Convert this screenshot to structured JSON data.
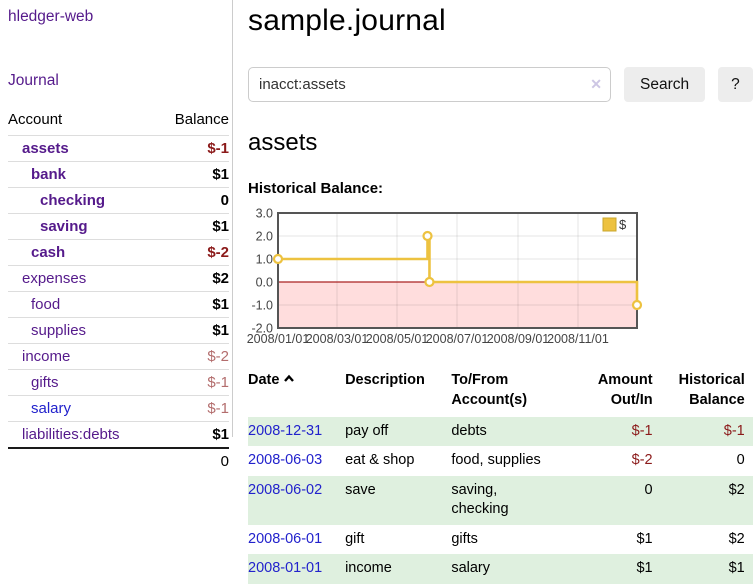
{
  "colors": {
    "link_purple": "#551a8b",
    "link_blue": "#2222cc",
    "negative_dark_red": "#8b1a1a",
    "negative_soft_red": "#b36d6d",
    "row_green": "#dff0df",
    "button_gray": "#ededed",
    "chart_line_gold": "#edc240",
    "chart_negative_fill": "#ffdddd",
    "chart_zero_line": "#aa2222"
  },
  "brand": {
    "title": "hledger-web"
  },
  "sidebar": {
    "journal_link": "Journal",
    "accounts_table": {
      "headers": {
        "account": "Account",
        "balance": "Balance"
      },
      "rows": [
        {
          "name": "assets",
          "balance": "$-1"
        },
        {
          "name": "bank",
          "balance": "$1"
        },
        {
          "name": "checking",
          "balance": "0"
        },
        {
          "name": "saving",
          "balance": "$1"
        },
        {
          "name": "cash",
          "balance": "$-2"
        },
        {
          "name": "expenses",
          "balance": "$2"
        },
        {
          "name": "food",
          "balance": "$1"
        },
        {
          "name": "supplies",
          "balance": "$1"
        },
        {
          "name": "income",
          "balance": "$-2"
        },
        {
          "name": "gifts",
          "balance": "$-1"
        },
        {
          "name": "salary",
          "balance": "$-1"
        },
        {
          "name": "liabilities:debts",
          "balance": "$1"
        }
      ],
      "total": "0"
    }
  },
  "main": {
    "title": "sample.journal",
    "search": {
      "value": "inacct:assets",
      "clear_icon": "✕",
      "search_button": "Search",
      "help_button": "?"
    },
    "account_heading": "assets",
    "chart_label": "Historical Balance:",
    "register": {
      "headers": {
        "date": "Date",
        "description": "Description",
        "accounts": "To/From Account(s)",
        "amount": "Amount Out/In",
        "balance": "Historical Balance"
      },
      "rows": [
        {
          "date": "2008-12-31",
          "description": "pay off",
          "accounts": "debts",
          "amount": "$-1",
          "balance": "$-1"
        },
        {
          "date": "2008-06-03",
          "description": "eat & shop",
          "accounts": "food, supplies",
          "amount": "$-2",
          "balance": "0"
        },
        {
          "date": "2008-06-02",
          "description": "save",
          "accounts": "saving, checking",
          "amount": "0",
          "balance": "$2"
        },
        {
          "date": "2008-06-01",
          "description": "gift",
          "accounts": "gifts",
          "amount": "$1",
          "balance": "$2"
        },
        {
          "date": "2008-01-01",
          "description": "income",
          "accounts": "salary",
          "amount": "$1",
          "balance": "$1"
        }
      ]
    }
  },
  "chart_data": {
    "type": "line",
    "title": "Historical Balance:",
    "step": true,
    "series": [
      {
        "name": "$",
        "color": "#edc240",
        "points": [
          [
            "2008-01-01",
            1
          ],
          [
            "2008-06-01",
            2
          ],
          [
            "2008-06-03",
            0
          ],
          [
            "2008-12-31",
            -1
          ]
        ]
      }
    ],
    "x_range": [
      "2008-01-01",
      "2008-12-31"
    ],
    "ylim": [
      -2,
      3
    ],
    "yticks": [
      "3.0",
      "2.0",
      "1.0",
      "0.0",
      "-1.0",
      "-2.0"
    ],
    "xticks": [
      "2008/01/01",
      "2008/03/01",
      "2008/05/01",
      "2008/07/01",
      "2008/09/01",
      "2008/11/01"
    ],
    "grid": true,
    "legend_position": "top-right",
    "negative_fill": "#ffdddd",
    "zero_line_color": "#aa2222"
  }
}
